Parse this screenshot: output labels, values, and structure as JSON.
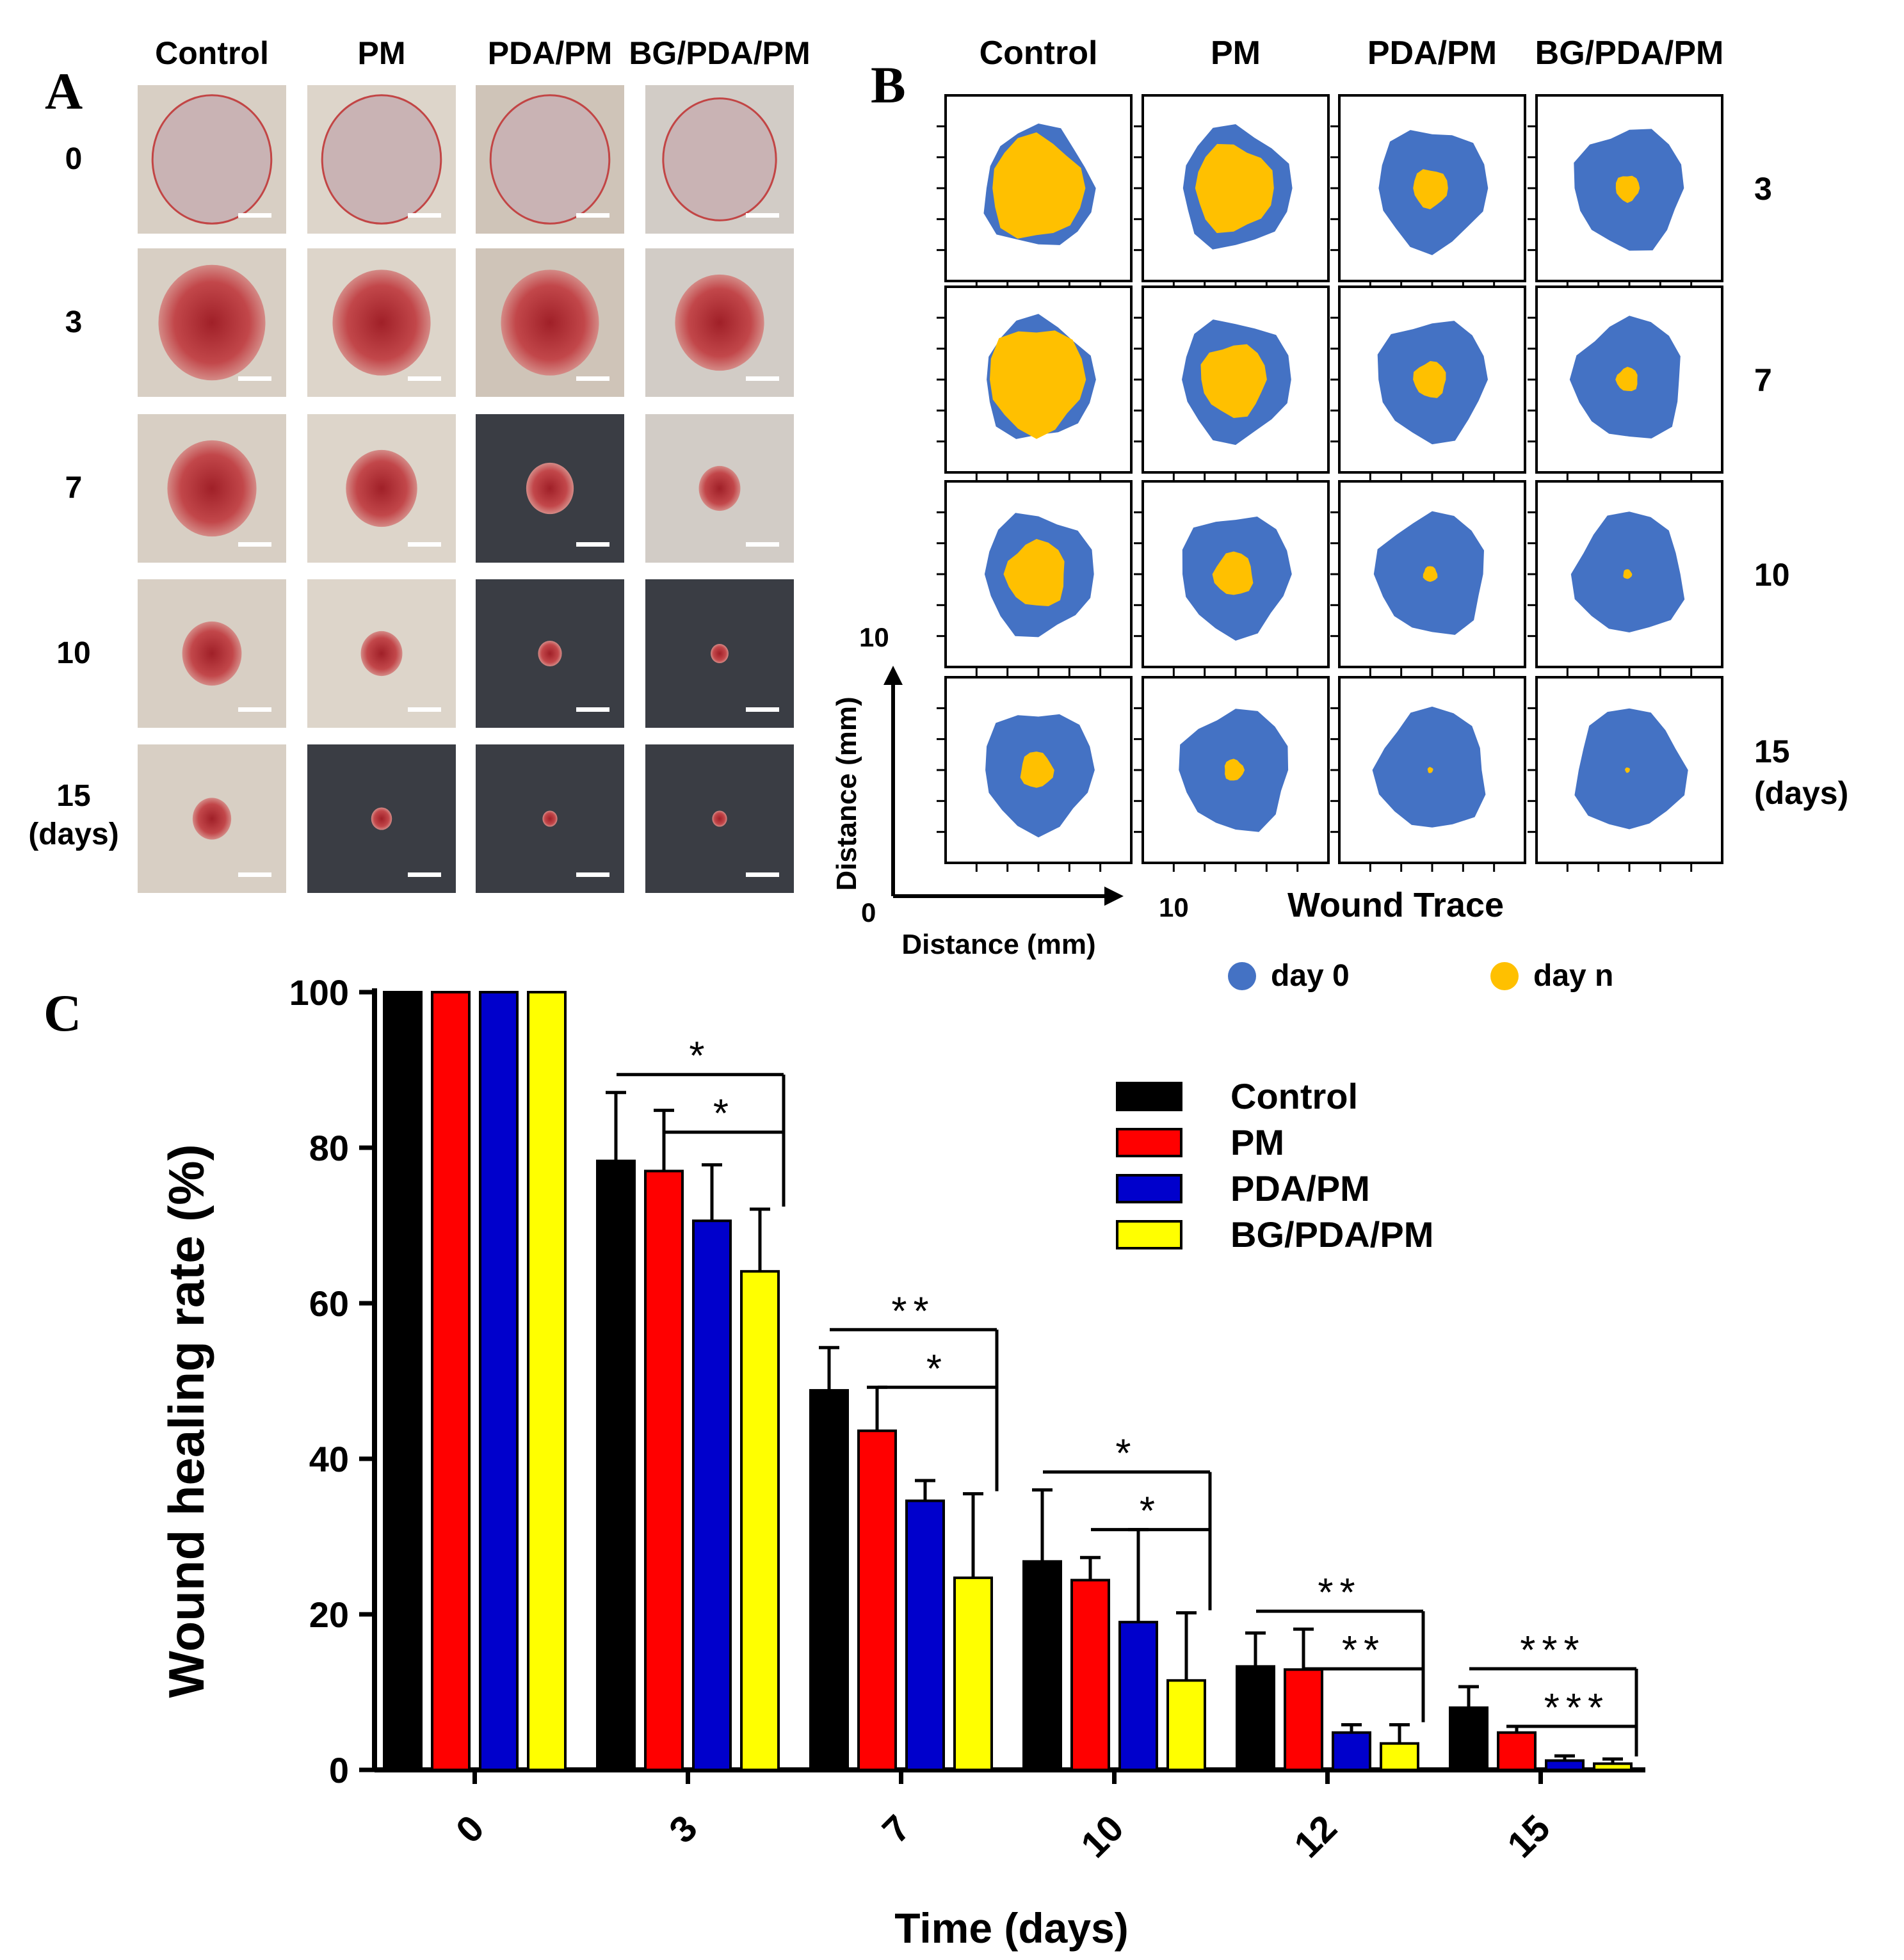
{
  "panels": {
    "A": {
      "letter": "A",
      "columns": [
        "Control",
        "PM",
        "PDA/PM",
        "BG/PDA/PM"
      ],
      "rows": [
        "0",
        "3",
        "7",
        "10",
        "15"
      ],
      "rows_suffix": "(days)"
    },
    "B": {
      "letter": "B",
      "columns": [
        "Control",
        "PM",
        "PDA/PM",
        "BG/PDA/PM"
      ],
      "rows": [
        "3",
        "7",
        "10",
        "15"
      ],
      "rows_suffix": "(days)",
      "inner_scale": [
        0.85,
        0.72,
        0.32,
        0.22,
        0.88,
        0.6,
        0.3,
        0.2,
        0.55,
        0.36,
        0.13,
        0.08,
        0.3,
        0.18,
        0.05,
        0.03
      ],
      "axis": {
        "y_label": "Distance (mm)",
        "x_label": "Distance (mm)",
        "origin": "0",
        "x_max": "10",
        "y_max": "10"
      },
      "title": "Wound Trace",
      "legend": [
        {
          "label": "day 0",
          "color": "#4472c4"
        },
        {
          "label": "day n",
          "color": "#ffc000"
        }
      ]
    },
    "C": {
      "letter": "C"
    }
  },
  "chart_data": {
    "type": "bar",
    "title": "",
    "xlabel": "Time (days)",
    "ylabel": "Wound healing rate (%)",
    "ylim": [
      0,
      100
    ],
    "yticks": [
      "0",
      "20",
      "40",
      "60",
      "80",
      "100"
    ],
    "categories": [
      "0",
      "3",
      "7",
      "10",
      "12",
      "15"
    ],
    "series": [
      {
        "name": "Control",
        "color": "#000000",
        "values": [
          100,
          78.3,
          48.8,
          26.8,
          13.3,
          8.0
        ],
        "errors": [
          0,
          8.8,
          5.5,
          9.2,
          4.3,
          2.7
        ]
      },
      {
        "name": "PM",
        "color": "#ff0000",
        "values": [
          100,
          77.0,
          43.6,
          24.4,
          12.9,
          4.8
        ],
        "errors": [
          0,
          7.8,
          5.6,
          2.9,
          5.2,
          0.8
        ]
      },
      {
        "name": "PDA/PM",
        "color": "#0000cc",
        "values": [
          100,
          70.6,
          34.6,
          19.0,
          4.8,
          1.2
        ],
        "errors": [
          0,
          7.2,
          2.6,
          11.9,
          1.0,
          0.6
        ]
      },
      {
        "name": "BG/PDA/PM",
        "color": "#ffff00",
        "values": [
          100,
          64.1,
          24.7,
          11.5,
          3.4,
          0.8
        ],
        "errors": [
          0,
          8.0,
          10.8,
          8.7,
          2.4,
          0.6
        ]
      }
    ],
    "significance": [
      {
        "category": "3",
        "pairs": [
          {
            "from": "Control",
            "label": "*"
          },
          {
            "from": "PM",
            "label": "*"
          }
        ]
      },
      {
        "category": "7",
        "pairs": [
          {
            "from": "Control",
            "label": "**"
          },
          {
            "from": "PM",
            "label": "*"
          }
        ]
      },
      {
        "category": "10",
        "pairs": [
          {
            "from": "Control",
            "label": "*"
          },
          {
            "from": "PM",
            "label": "*"
          }
        ]
      },
      {
        "category": "12",
        "pairs": [
          {
            "from": "Control",
            "label": "**"
          },
          {
            "from": "PM",
            "label": "**"
          }
        ]
      },
      {
        "category": "15",
        "pairs": [
          {
            "from": "Control",
            "label": "***"
          },
          {
            "from": "PM",
            "label": "***"
          }
        ]
      }
    ]
  }
}
